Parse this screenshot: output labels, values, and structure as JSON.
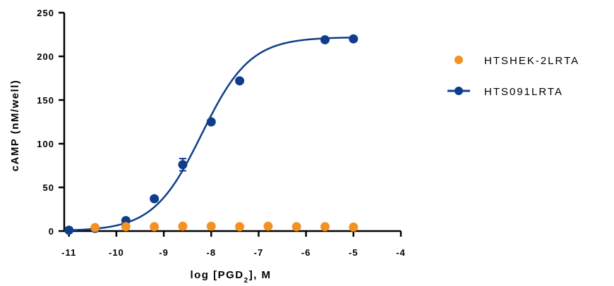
{
  "chart_data": {
    "type": "scatter",
    "xlabel_main": "log [PGD",
    "xlabel_sub": "2",
    "xlabel_tail": "], M",
    "ylabel": "cAMP (nM/well)",
    "xlim": [
      -11.1,
      -4
    ],
    "ylim": [
      0,
      250
    ],
    "x_ticks": [
      -11,
      -10,
      -9,
      -8,
      -7,
      -6,
      -5,
      -4
    ],
    "y_ticks": [
      0,
      50,
      100,
      150,
      200,
      250
    ],
    "grid": false,
    "legend_position": "right",
    "series": [
      {
        "name": "HTSHEK-2LRTA",
        "color": "#F39123",
        "marker": "circle",
        "line": false,
        "points": [
          {
            "x": -10.45,
            "y": 4
          },
          {
            "x": -9.8,
            "y": 5
          },
          {
            "x": -9.2,
            "y": 5
          },
          {
            "x": -8.6,
            "y": 5.5
          },
          {
            "x": -8.0,
            "y": 5.5
          },
          {
            "x": -7.4,
            "y": 5
          },
          {
            "x": -6.8,
            "y": 5.5
          },
          {
            "x": -6.2,
            "y": 5
          },
          {
            "x": -5.6,
            "y": 5
          },
          {
            "x": -5.0,
            "y": 4.5
          }
        ]
      },
      {
        "name": "HTS091LRTA",
        "color": "#0E3E8A",
        "marker": "circle",
        "line": true,
        "curve": {
          "bottom": 0,
          "top": 222,
          "log_ec50": -8.2,
          "hill": 0.85
        },
        "points": [
          {
            "x": -11.0,
            "y": 1
          },
          {
            "x": -10.45,
            "y": 3
          },
          {
            "x": -9.8,
            "y": 12
          },
          {
            "x": -9.2,
            "y": 37
          },
          {
            "x": -8.6,
            "y": 76,
            "err": 7
          },
          {
            "x": -8.0,
            "y": 125
          },
          {
            "x": -7.4,
            "y": 172
          },
          {
            "x": -5.6,
            "y": 219
          },
          {
            "x": -5.0,
            "y": 220
          }
        ]
      }
    ]
  }
}
